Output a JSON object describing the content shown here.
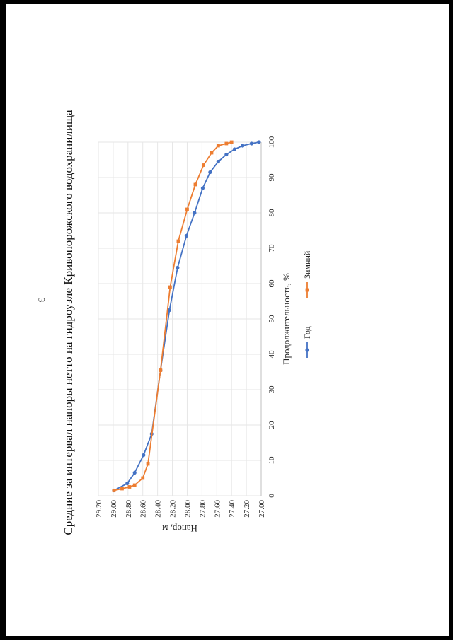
{
  "page_number": "3",
  "chart_data": {
    "type": "line",
    "title": "Средние за интервал напоры нетто на гидроузле Кривопорожского водохранилища",
    "xlabel": "Продолжительность, %",
    "ylabel": "Напор, м",
    "xlim": [
      0,
      100
    ],
    "ylim": [
      27.0,
      29.2
    ],
    "x_ticks": [
      "0",
      "10",
      "20",
      "30",
      "40",
      "50",
      "60",
      "70",
      "80",
      "90",
      "100"
    ],
    "y_ticks": [
      "27.00",
      "27.20",
      "27.40",
      "27.60",
      "27.80",
      "28.00",
      "28.20",
      "28.40",
      "28.60",
      "28.80",
      "29.00",
      "29.20"
    ],
    "grid": true,
    "legend": "bottom",
    "series": [
      {
        "name": "Год",
        "color": "#4472C4",
        "points": [
          [
            1.5,
            28.99
          ],
          [
            3.5,
            28.81
          ],
          [
            6.5,
            28.71
          ],
          [
            11.5,
            28.59
          ],
          [
            17.5,
            28.48
          ],
          [
            35.5,
            28.36
          ],
          [
            52.5,
            28.24
          ],
          [
            64.5,
            28.13
          ],
          [
            73.5,
            28.01
          ],
          [
            80,
            27.9
          ],
          [
            87,
            27.79
          ],
          [
            91.5,
            27.69
          ],
          [
            94.5,
            27.58
          ],
          [
            96.5,
            27.47
          ],
          [
            98,
            27.36
          ],
          [
            99,
            27.25
          ],
          [
            99.6,
            27.13
          ],
          [
            100,
            27.03
          ]
        ]
      },
      {
        "name": "Зимний",
        "color": "#ED7D31",
        "points": [
          [
            1.5,
            28.99
          ],
          [
            2,
            28.88
          ],
          [
            2.5,
            28.78
          ],
          [
            3,
            28.71
          ],
          [
            5,
            28.6
          ],
          [
            9,
            28.53
          ],
          [
            35.5,
            28.36
          ],
          [
            59,
            28.23
          ],
          [
            72,
            28.12
          ],
          [
            81,
            28.0
          ],
          [
            88,
            27.89
          ],
          [
            93.5,
            27.78
          ],
          [
            97,
            27.67
          ],
          [
            99,
            27.58
          ],
          [
            99.6,
            27.47
          ],
          [
            100,
            27.4
          ]
        ]
      }
    ]
  }
}
